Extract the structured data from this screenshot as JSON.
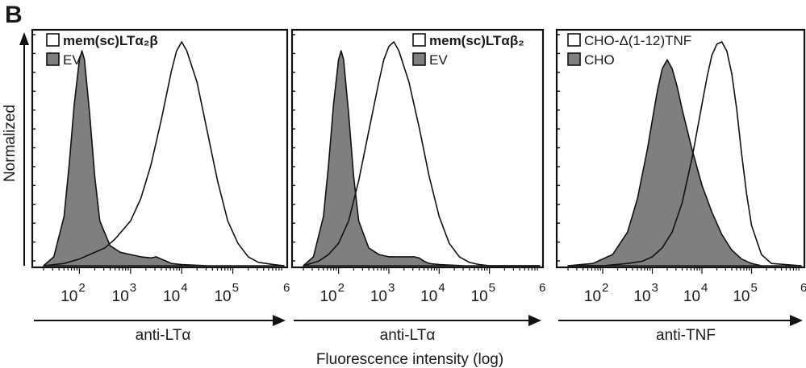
{
  "panel_label": "B",
  "y_label": "Normalized",
  "common_x_label": "Fluorescence intensity (log)",
  "colors": {
    "filled": "#7f7f7f",
    "outline": "#111111",
    "frame": "#111111"
  },
  "chart_data": [
    {
      "type": "area",
      "x_scale": "log",
      "xlabel": "anti-LTα",
      "xlim_log10": [
        1.3,
        6.0
      ],
      "ticks": [
        {
          "base": "10",
          "exp": "2",
          "log": 2
        },
        {
          "base": "10",
          "exp": "3",
          "log": 3
        },
        {
          "base": "10",
          "exp": "4",
          "log": 4
        },
        {
          "base": "10",
          "exp": "5",
          "log": 5
        },
        {
          "base": "",
          "exp": "6",
          "log": 6
        }
      ],
      "series": [
        {
          "name": "mem(sc)LTα₂β",
          "style": "outline",
          "label_weight": "bold",
          "x_log10": [
            1.3,
            1.7,
            2.0,
            2.2,
            2.5,
            2.7,
            3.0,
            3.2,
            3.4,
            3.6,
            3.8,
            3.9,
            4.0,
            4.1,
            4.3,
            4.5,
            4.7,
            4.9,
            5.1,
            5.3,
            5.5,
            5.8,
            6.0
          ],
          "y": [
            0.0,
            0.01,
            0.03,
            0.05,
            0.08,
            0.12,
            0.2,
            0.3,
            0.45,
            0.65,
            0.87,
            0.96,
            1.0,
            0.96,
            0.82,
            0.6,
            0.38,
            0.2,
            0.1,
            0.04,
            0.015,
            0.005,
            0.0
          ]
        },
        {
          "name": "EV",
          "style": "filled",
          "label_weight": "normal",
          "x_log10": [
            1.3,
            1.5,
            1.7,
            1.8,
            1.9,
            2.0,
            2.05,
            2.1,
            2.2,
            2.3,
            2.4,
            2.6,
            2.8,
            3.0,
            3.2,
            3.4,
            3.5,
            3.6,
            3.7,
            3.8,
            4.0,
            4.5,
            6.0
          ],
          "y": [
            0.0,
            0.04,
            0.22,
            0.45,
            0.72,
            0.92,
            0.96,
            0.92,
            0.68,
            0.4,
            0.2,
            0.09,
            0.06,
            0.05,
            0.04,
            0.035,
            0.04,
            0.03,
            0.02,
            0.01,
            0.005,
            0.0,
            0.0
          ]
        }
      ]
    },
    {
      "type": "area",
      "x_scale": "log",
      "xlabel": "anti-LTα",
      "xlim_log10": [
        1.3,
        6.0
      ],
      "ticks": [
        {
          "base": "10",
          "exp": "2",
          "log": 2
        },
        {
          "base": "10",
          "exp": "3",
          "log": 3
        },
        {
          "base": "10",
          "exp": "4",
          "log": 4
        },
        {
          "base": "10",
          "exp": "5",
          "log": 5
        },
        {
          "base": "",
          "exp": "6",
          "log": 6
        }
      ],
      "series": [
        {
          "name": "mem(sc)LTαβ₂",
          "style": "outline",
          "label_weight": "bold",
          "x_log10": [
            1.3,
            1.6,
            1.8,
            2.0,
            2.2,
            2.4,
            2.6,
            2.8,
            2.9,
            3.0,
            3.1,
            3.2,
            3.4,
            3.6,
            3.8,
            4.0,
            4.2,
            4.4,
            4.6,
            4.8,
            5.0,
            5.5,
            6.0
          ],
          "y": [
            0.0,
            0.02,
            0.05,
            0.1,
            0.2,
            0.38,
            0.6,
            0.82,
            0.92,
            0.98,
            1.0,
            0.96,
            0.82,
            0.62,
            0.4,
            0.22,
            0.1,
            0.04,
            0.015,
            0.005,
            0.0,
            0.0,
            0.0
          ]
        },
        {
          "name": "EV",
          "style": "filled",
          "label_weight": "normal",
          "x_log10": [
            1.3,
            1.5,
            1.7,
            1.8,
            1.9,
            2.0,
            2.05,
            2.1,
            2.2,
            2.3,
            2.4,
            2.6,
            2.8,
            3.0,
            3.2,
            3.4,
            3.5,
            3.6,
            3.7,
            3.8,
            4.0,
            4.5,
            6.0
          ],
          "y": [
            0.0,
            0.04,
            0.22,
            0.45,
            0.72,
            0.92,
            0.96,
            0.92,
            0.68,
            0.4,
            0.2,
            0.08,
            0.05,
            0.04,
            0.04,
            0.04,
            0.04,
            0.035,
            0.02,
            0.01,
            0.005,
            0.0,
            0.0
          ]
        }
      ]
    },
    {
      "type": "area",
      "x_scale": "log",
      "xlabel": "anti-TNF",
      "xlim_log10": [
        1.3,
        6.0
      ],
      "ticks": [
        {
          "base": "10",
          "exp": "2",
          "log": 2
        },
        {
          "base": "10",
          "exp": "3",
          "log": 3
        },
        {
          "base": "10",
          "exp": "4",
          "log": 4
        },
        {
          "base": "10",
          "exp": "5",
          "log": 5
        },
        {
          "base": "",
          "exp": "6",
          "log": 6
        }
      ],
      "series": [
        {
          "name": "CHO-Δ(1-12)TNF",
          "style": "outline",
          "label_weight": "normal",
          "x_log10": [
            1.3,
            2.0,
            2.5,
            2.8,
            3.0,
            3.2,
            3.4,
            3.6,
            3.8,
            4.0,
            4.1,
            4.2,
            4.3,
            4.4,
            4.5,
            4.6,
            4.7,
            4.8,
            4.9,
            5.0,
            5.2,
            5.4,
            6.0
          ],
          "y": [
            0.0,
            0.0,
            0.01,
            0.02,
            0.04,
            0.08,
            0.15,
            0.28,
            0.48,
            0.72,
            0.84,
            0.94,
            0.99,
            1.0,
            0.96,
            0.86,
            0.7,
            0.5,
            0.32,
            0.18,
            0.05,
            0.01,
            0.0
          ]
        },
        {
          "name": "CHO",
          "style": "filled",
          "label_weight": "normal",
          "x_log10": [
            1.3,
            1.8,
            2.2,
            2.5,
            2.7,
            2.9,
            3.0,
            3.1,
            3.2,
            3.3,
            3.4,
            3.5,
            3.6,
            3.8,
            4.0,
            4.2,
            4.4,
            4.6,
            4.8,
            5.0,
            5.2,
            5.5,
            6.0
          ],
          "y": [
            0.0,
            0.01,
            0.05,
            0.15,
            0.3,
            0.52,
            0.65,
            0.78,
            0.88,
            0.92,
            0.88,
            0.8,
            0.7,
            0.52,
            0.36,
            0.24,
            0.14,
            0.07,
            0.03,
            0.01,
            0.0,
            0.0,
            0.0
          ]
        }
      ]
    }
  ]
}
